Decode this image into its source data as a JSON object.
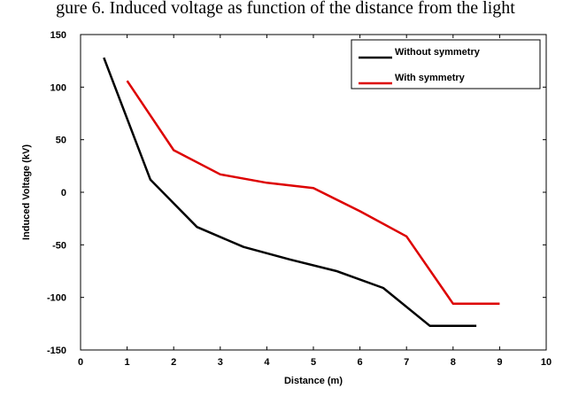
{
  "page_text": "gure 6. Induced voltage as function of the distance from the light",
  "chart_data": {
    "type": "line",
    "title": "",
    "xlabel": "Distance (m)",
    "ylabel": "Induced Voltage (kV)",
    "xlim": [
      0,
      10
    ],
    "ylim": [
      -150,
      150
    ],
    "xticks": [
      "0",
      "1",
      "2",
      "3",
      "4",
      "5",
      "6",
      "7",
      "8",
      "9",
      "10"
    ],
    "yticks": [
      "150",
      "100",
      "50",
      "0",
      "-50",
      "-100",
      "-150"
    ],
    "grid": false,
    "legend_position": "top-right",
    "series": [
      {
        "name": "Without symmetry",
        "color": "#000000",
        "x": [
          0.5,
          1.5,
          2.5,
          3.5,
          4.5,
          5.5,
          6.5,
          7.5,
          8.5
        ],
        "y": [
          128,
          12,
          -33,
          -52,
          -64,
          -75,
          -91,
          -127,
          -127
        ]
      },
      {
        "name": "With symmetry",
        "color": "#dd0000",
        "x": [
          1,
          2,
          3,
          4,
          5,
          6,
          7,
          8,
          9
        ],
        "y": [
          106,
          40,
          17,
          9,
          4,
          -18,
          -42,
          -106,
          -106
        ]
      }
    ]
  }
}
